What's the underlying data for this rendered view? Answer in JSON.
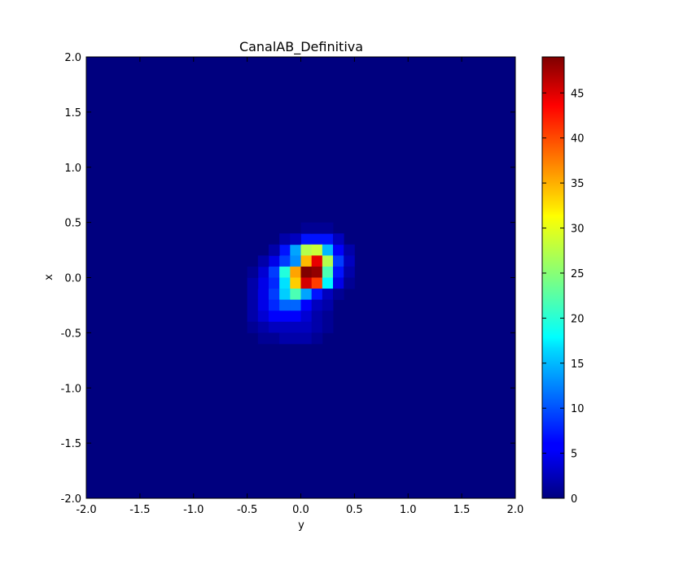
{
  "chart_data": {
    "type": "heatmap",
    "title": "CanalAB_Definitiva",
    "xlabel": "y",
    "ylabel": "x",
    "xlim": [
      -2.0,
      2.0
    ],
    "ylim": [
      -2.0,
      2.0
    ],
    "bins": 40,
    "x_ticks": [
      "-2.0",
      "-1.5",
      "-1.0",
      "-0.5",
      "0.0",
      "0.5",
      "1.0",
      "1.5",
      "2.0"
    ],
    "y_ticks": [
      "-2.0",
      "-1.5",
      "-1.0",
      "-0.5",
      "0.0",
      "0.5",
      "1.0",
      "1.5",
      "2.0"
    ],
    "colorbar": {
      "min": 0,
      "max": 49,
      "ticks": [
        "0",
        "5",
        "10",
        "15",
        "20",
        "25",
        "30",
        "35",
        "40",
        "45"
      ],
      "colormap": "jet"
    },
    "cells": [
      {
        "y": 0.05,
        "x": 0.35,
        "v": 7
      },
      {
        "y": 0.15,
        "x": 0.35,
        "v": 7
      },
      {
        "y": 0.25,
        "x": 0.35,
        "v": 7
      },
      {
        "y": -0.15,
        "x": 0.25,
        "v": 7
      },
      {
        "y": -0.05,
        "x": 0.25,
        "v": 14
      },
      {
        "y": 0.05,
        "x": 0.25,
        "v": 27
      },
      {
        "y": 0.15,
        "x": 0.25,
        "v": 28
      },
      {
        "y": 0.25,
        "x": 0.25,
        "v": 15
      },
      {
        "y": 0.35,
        "x": 0.25,
        "v": 6
      },
      {
        "y": -0.25,
        "x": 0.15,
        "v": 5
      },
      {
        "y": -0.15,
        "x": 0.15,
        "v": 9
      },
      {
        "y": -0.05,
        "x": 0.15,
        "v": 13
      },
      {
        "y": 0.05,
        "x": 0.15,
        "v": 34
      },
      {
        "y": 0.15,
        "x": 0.15,
        "v": 44
      },
      {
        "y": 0.25,
        "x": 0.15,
        "v": 27
      },
      {
        "y": 0.35,
        "x": 0.15,
        "v": 9
      },
      {
        "y": -0.35,
        "x": 0.05,
        "v": 4
      },
      {
        "y": -0.25,
        "x": 0.05,
        "v": 9
      },
      {
        "y": -0.15,
        "x": 0.05,
        "v": 20
      },
      {
        "y": -0.05,
        "x": 0.05,
        "v": 35
      },
      {
        "y": 0.05,
        "x": 0.05,
        "v": 49
      },
      {
        "y": 0.15,
        "x": 0.05,
        "v": 48
      },
      {
        "y": 0.25,
        "x": 0.05,
        "v": 22
      },
      {
        "y": 0.35,
        "x": 0.05,
        "v": 7
      },
      {
        "y": -0.35,
        "x": -0.05,
        "v": 5
      },
      {
        "y": -0.25,
        "x": -0.05,
        "v": 8
      },
      {
        "y": -0.15,
        "x": -0.05,
        "v": 17
      },
      {
        "y": -0.05,
        "x": -0.05,
        "v": 33
      },
      {
        "y": 0.05,
        "x": -0.05,
        "v": 45
      },
      {
        "y": 0.15,
        "x": -0.05,
        "v": 40
      },
      {
        "y": 0.25,
        "x": -0.05,
        "v": 18
      },
      {
        "y": 0.35,
        "x": -0.05,
        "v": 5
      },
      {
        "y": -0.45,
        "x": -0.15,
        "v": 2
      },
      {
        "y": -0.35,
        "x": -0.15,
        "v": 5
      },
      {
        "y": -0.25,
        "x": -0.15,
        "v": 9
      },
      {
        "y": -0.15,
        "x": -0.15,
        "v": 16
      },
      {
        "y": -0.05,
        "x": -0.15,
        "v": 22
      },
      {
        "y": 0.05,
        "x": -0.15,
        "v": 14
      },
      {
        "y": 0.15,
        "x": -0.15,
        "v": 7
      },
      {
        "y": 0.25,
        "x": -0.15,
        "v": 3
      },
      {
        "y": -0.45,
        "x": -0.25,
        "v": 2
      },
      {
        "y": -0.35,
        "x": -0.25,
        "v": 5
      },
      {
        "y": -0.25,
        "x": -0.25,
        "v": 8
      },
      {
        "y": -0.15,
        "x": -0.25,
        "v": 11
      },
      {
        "y": -0.05,
        "x": -0.25,
        "v": 11
      },
      {
        "y": 0.05,
        "x": -0.25,
        "v": 6
      },
      {
        "y": 0.15,
        "x": -0.25,
        "v": 3
      },
      {
        "y": 0.25,
        "x": -0.25,
        "v": 2
      },
      {
        "y": -0.45,
        "x": -0.35,
        "v": 2
      },
      {
        "y": -0.35,
        "x": -0.35,
        "v": 4
      },
      {
        "y": -0.25,
        "x": -0.35,
        "v": 6
      },
      {
        "y": -0.15,
        "x": -0.35,
        "v": 6
      },
      {
        "y": -0.05,
        "x": -0.35,
        "v": 6
      },
      {
        "y": 0.05,
        "x": -0.35,
        "v": 4
      },
      {
        "y": 0.15,
        "x": -0.35,
        "v": 2
      },
      {
        "y": 0.25,
        "x": -0.35,
        "v": 1
      },
      {
        "y": -0.45,
        "x": -0.45,
        "v": 1
      },
      {
        "y": -0.35,
        "x": -0.45,
        "v": 2
      },
      {
        "y": -0.25,
        "x": -0.45,
        "v": 3
      },
      {
        "y": -0.15,
        "x": -0.45,
        "v": 3
      },
      {
        "y": -0.05,
        "x": -0.45,
        "v": 3
      },
      {
        "y": 0.05,
        "x": -0.45,
        "v": 3
      },
      {
        "y": 0.15,
        "x": -0.45,
        "v": 2
      },
      {
        "y": 0.25,
        "x": -0.45,
        "v": 1
      },
      {
        "y": -0.35,
        "x": -0.55,
        "v": 1
      },
      {
        "y": -0.25,
        "x": -0.55,
        "v": 1
      },
      {
        "y": -0.15,
        "x": -0.55,
        "v": 2
      },
      {
        "y": -0.05,
        "x": -0.55,
        "v": 2
      },
      {
        "y": 0.05,
        "x": -0.55,
        "v": 2
      },
      {
        "y": 0.15,
        "x": -0.55,
        "v": 1
      },
      {
        "y": -0.45,
        "x": -0.05,
        "v": 2
      },
      {
        "y": -0.45,
        "x": 0.05,
        "v": 1
      },
      {
        "y": -0.35,
        "x": 0.15,
        "v": 2
      },
      {
        "y": -0.25,
        "x": 0.25,
        "v": 2
      },
      {
        "y": -0.15,
        "x": 0.35,
        "v": 2
      },
      {
        "y": -0.05,
        "x": 0.35,
        "v": 3
      },
      {
        "y": 0.35,
        "x": 0.35,
        "v": 3
      },
      {
        "y": 0.45,
        "x": 0.25,
        "v": 2
      },
      {
        "y": 0.45,
        "x": 0.15,
        "v": 3
      },
      {
        "y": 0.45,
        "x": 0.05,
        "v": 2
      },
      {
        "y": 0.45,
        "x": -0.05,
        "v": 1
      },
      {
        "y": 0.35,
        "x": -0.15,
        "v": 1
      },
      {
        "y": 0.05,
        "x": 0.45,
        "v": 1
      },
      {
        "y": 0.15,
        "x": 0.45,
        "v": 1
      },
      {
        "y": 0.25,
        "x": 0.45,
        "v": 1
      }
    ]
  }
}
